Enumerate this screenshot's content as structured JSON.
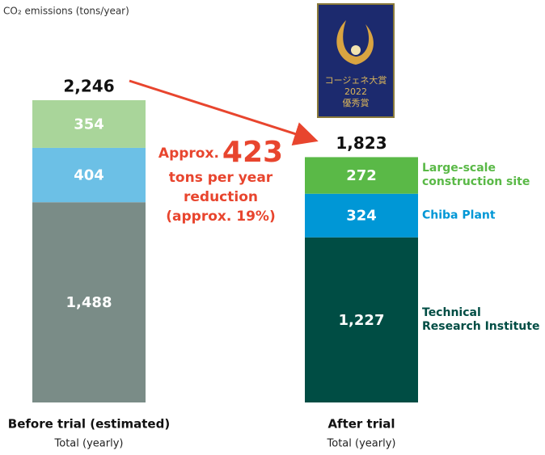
{
  "chart_data": {
    "type": "bar",
    "stacked": true,
    "y_label": "CO₂ emissions (tons/year)",
    "categories": [
      "Before trial (estimated)",
      "After trial"
    ],
    "category_sublabels": [
      "Total (yearly)",
      "Total (yearly)"
    ],
    "series": [
      {
        "name": "Technical Research Institute",
        "colors": [
          "#7a8c87",
          "#004d44"
        ],
        "values": [
          1488,
          1227
        ],
        "value_labels": [
          "1,488",
          "1,227"
        ]
      },
      {
        "name": "Chiba Plant",
        "colors": [
          "#6cc0e6",
          "#0097d6"
        ],
        "values": [
          404,
          324
        ]
      },
      {
        "name": "Large-scale construction site",
        "colors": [
          "#a9d59a",
          "#5ab947"
        ],
        "values": [
          354,
          272
        ]
      }
    ],
    "totals": [
      2246,
      1823
    ],
    "total_labels": [
      "2,246",
      "1,823"
    ],
    "annotation": {
      "prefix": "Approx.",
      "value": 423,
      "lines": [
        "tons per year",
        "reduction",
        "(approx. 19%)"
      ],
      "color": "#e8452e"
    },
    "badge": {
      "lines": [
        "コージェネ大賞",
        "2022",
        "優秀賞"
      ]
    },
    "ylim": [
      0,
      2300
    ]
  }
}
